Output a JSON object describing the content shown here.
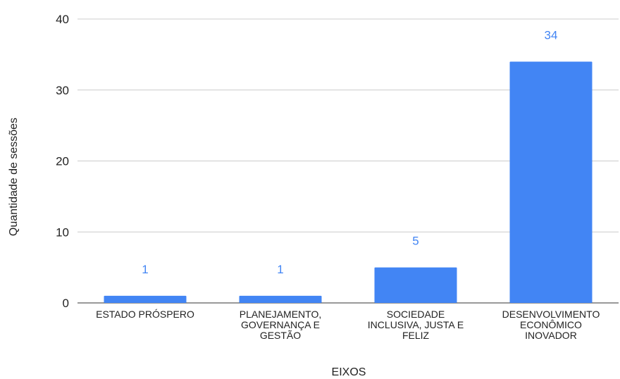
{
  "chart_data": {
    "type": "bar",
    "categories": [
      "ESTADO PRÓSPERO",
      "PLANEJAMENTO, GOVERNANÇA E GESTÃO",
      "SOCIEDADE INCLUSIVA, JUSTA E FELIZ",
      "DESENVOLVIMENTO ECONÔMICO INOVADOR"
    ],
    "category_lines": [
      [
        "ESTADO PRÓSPERO"
      ],
      [
        "PLANEJAMENTO,",
        "GOVERNANÇA E",
        "GESTÃO"
      ],
      [
        "SOCIEDADE",
        "INCLUSIVA, JUSTA E",
        "FELIZ"
      ],
      [
        "DESENVOLVIMENTO",
        "ECONÔMICO",
        "INOVADOR"
      ]
    ],
    "values": [
      1,
      1,
      5,
      34
    ],
    "data_labels": [
      "1",
      "1",
      "5",
      "34"
    ],
    "xlabel": "EIXOS",
    "ylabel": "Quantidade de sessões",
    "ylim": [
      0,
      40
    ],
    "yticks": [
      0,
      10,
      20,
      30,
      40
    ],
    "grid": true,
    "legend": "none",
    "colors": {
      "bar": "#4285f4",
      "data_label": "#4285f4",
      "grid": "#cccccc",
      "baseline": "#333333",
      "text": "#222222"
    }
  }
}
